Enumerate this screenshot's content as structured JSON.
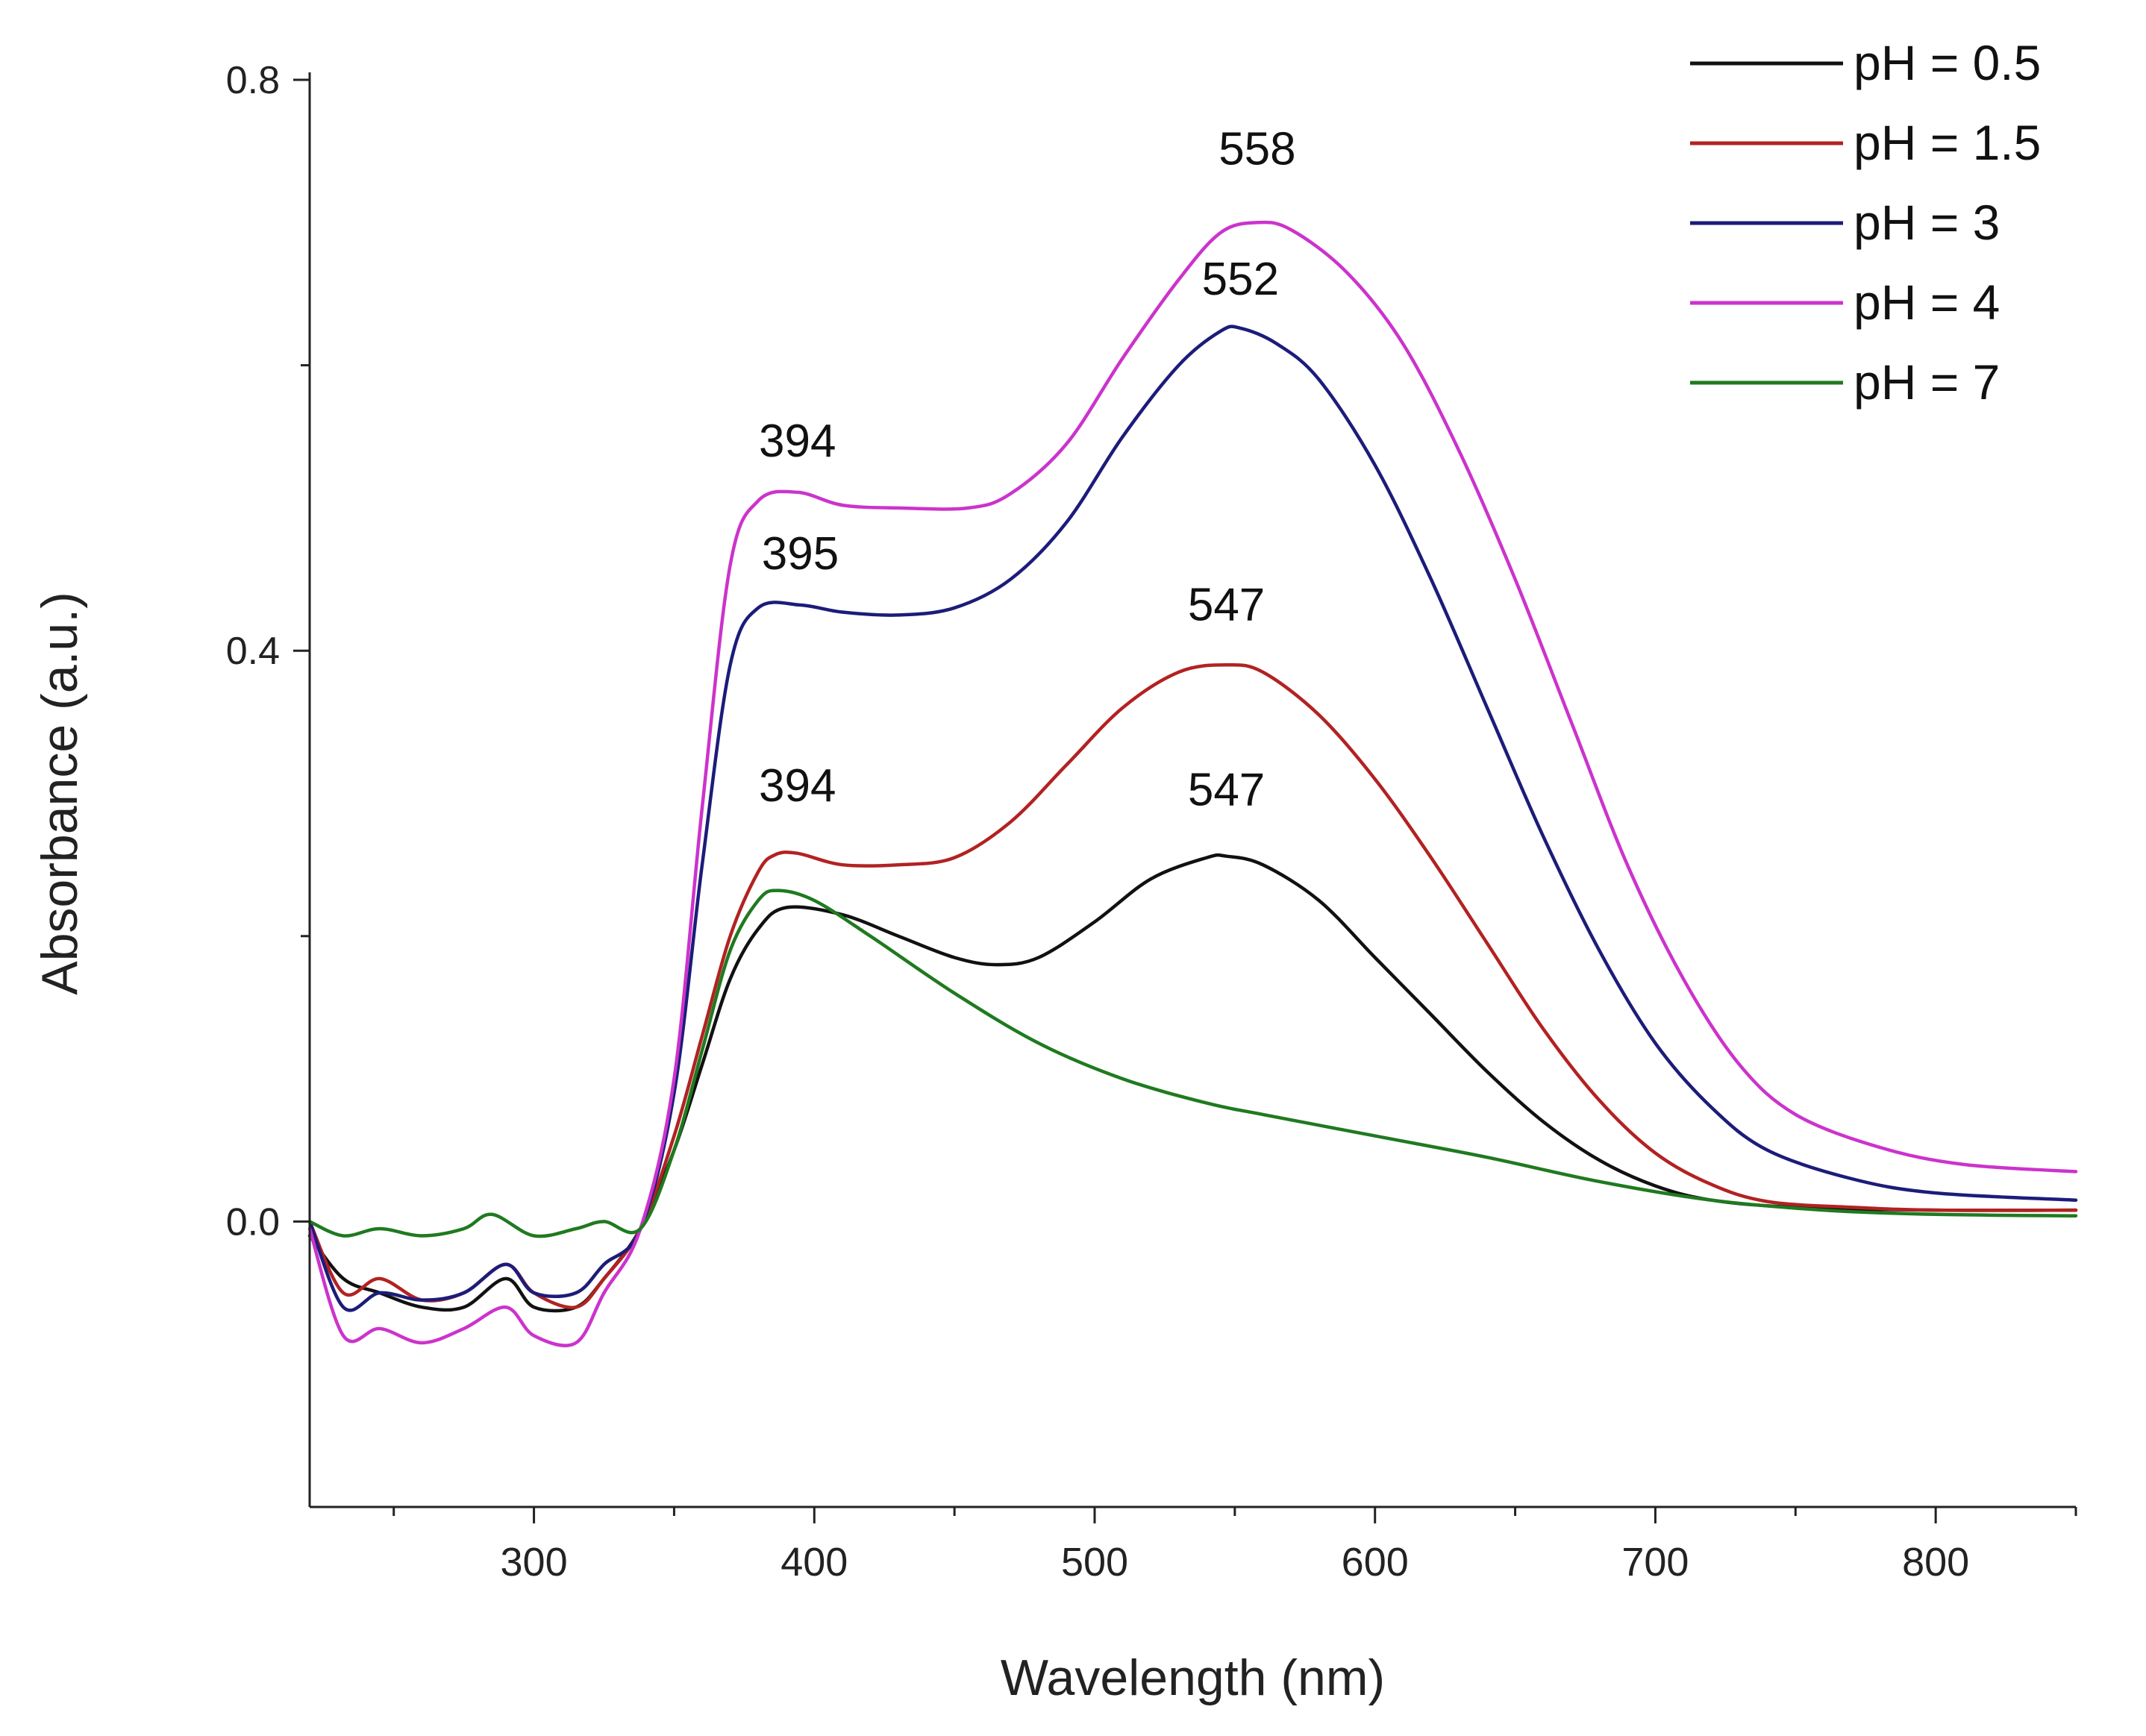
{
  "chart_data": {
    "type": "line",
    "title": "",
    "xlabel": "Wavelength (nm)",
    "ylabel": "Absorbance (a.u.)",
    "xlim": [
      220,
      850
    ],
    "ylim": [
      -0.2,
      0.8
    ],
    "x_ticks": [
      300,
      400,
      500,
      600,
      700,
      800
    ],
    "y_ticks": [
      0.0,
      0.4,
      0.8
    ],
    "y_tick_labels": [
      "0.0",
      "0.4",
      "0.8"
    ],
    "grid": false,
    "legend_position": "top-right",
    "series": [
      {
        "name": "pH = 0.5",
        "color": "#111111",
        "points": [
          [
            220,
            -0.01
          ],
          [
            232,
            -0.04
          ],
          [
            245,
            -0.05
          ],
          [
            260,
            -0.06
          ],
          [
            275,
            -0.06
          ],
          [
            290,
            -0.04
          ],
          [
            300,
            -0.06
          ],
          [
            315,
            -0.06
          ],
          [
            325,
            -0.04
          ],
          [
            338,
            -0.005
          ],
          [
            350,
            0.05
          ],
          [
            360,
            0.11
          ],
          [
            370,
            0.17
          ],
          [
            380,
            0.205
          ],
          [
            390,
            0.22
          ],
          [
            410,
            0.215
          ],
          [
            430,
            0.2
          ],
          [
            450,
            0.185
          ],
          [
            465,
            0.18
          ],
          [
            480,
            0.185
          ],
          [
            500,
            0.21
          ],
          [
            520,
            0.24
          ],
          [
            540,
            0.255
          ],
          [
            547,
            0.256
          ],
          [
            560,
            0.25
          ],
          [
            580,
            0.225
          ],
          [
            600,
            0.185
          ],
          [
            620,
            0.145
          ],
          [
            640,
            0.105
          ],
          [
            660,
            0.07
          ],
          [
            680,
            0.043
          ],
          [
            700,
            0.025
          ],
          [
            720,
            0.015
          ],
          [
            750,
            0.01
          ],
          [
            800,
            0.008
          ],
          [
            850,
            0.008
          ]
        ]
      },
      {
        "name": "pH = 1.5",
        "color": "#b22222",
        "points": [
          [
            220,
            0.0
          ],
          [
            232,
            -0.05
          ],
          [
            245,
            -0.04
          ],
          [
            260,
            -0.055
          ],
          [
            275,
            -0.05
          ],
          [
            290,
            -0.03
          ],
          [
            300,
            -0.05
          ],
          [
            315,
            -0.06
          ],
          [
            325,
            -0.04
          ],
          [
            338,
            -0.005
          ],
          [
            350,
            0.06
          ],
          [
            360,
            0.13
          ],
          [
            370,
            0.2
          ],
          [
            380,
            0.245
          ],
          [
            386,
            0.257
          ],
          [
            394,
            0.258
          ],
          [
            410,
            0.25
          ],
          [
            430,
            0.25
          ],
          [
            450,
            0.255
          ],
          [
            470,
            0.28
          ],
          [
            490,
            0.32
          ],
          [
            510,
            0.36
          ],
          [
            530,
            0.385
          ],
          [
            547,
            0.39
          ],
          [
            560,
            0.385
          ],
          [
            580,
            0.355
          ],
          [
            600,
            0.31
          ],
          [
            620,
            0.255
          ],
          [
            640,
            0.195
          ],
          [
            660,
            0.135
          ],
          [
            680,
            0.085
          ],
          [
            700,
            0.048
          ],
          [
            720,
            0.026
          ],
          [
            740,
            0.014
          ],
          [
            770,
            0.01
          ],
          [
            800,
            0.008
          ],
          [
            850,
            0.008
          ]
        ]
      },
      {
        "name": "pH = 3",
        "color": "#1c1c7a",
        "points": [
          [
            220,
            0.0
          ],
          [
            232,
            -0.06
          ],
          [
            245,
            -0.05
          ],
          [
            260,
            -0.055
          ],
          [
            275,
            -0.05
          ],
          [
            290,
            -0.03
          ],
          [
            300,
            -0.05
          ],
          [
            315,
            -0.05
          ],
          [
            325,
            -0.03
          ],
          [
            338,
            -0.005
          ],
          [
            350,
            0.09
          ],
          [
            360,
            0.25
          ],
          [
            370,
            0.39
          ],
          [
            380,
            0.43
          ],
          [
            395,
            0.432
          ],
          [
            410,
            0.427
          ],
          [
            430,
            0.425
          ],
          [
            450,
            0.43
          ],
          [
            470,
            0.45
          ],
          [
            490,
            0.49
          ],
          [
            510,
            0.55
          ],
          [
            530,
            0.6
          ],
          [
            545,
            0.624
          ],
          [
            552,
            0.626
          ],
          [
            565,
            0.615
          ],
          [
            580,
            0.59
          ],
          [
            600,
            0.53
          ],
          [
            620,
            0.45
          ],
          [
            640,
            0.36
          ],
          [
            660,
            0.27
          ],
          [
            680,
            0.19
          ],
          [
            700,
            0.125
          ],
          [
            720,
            0.08
          ],
          [
            740,
            0.05
          ],
          [
            770,
            0.03
          ],
          [
            800,
            0.02
          ],
          [
            850,
            0.015
          ]
        ]
      },
      {
        "name": "pH = 4",
        "color": "#cc33cc",
        "points": [
          [
            220,
            -0.005
          ],
          [
            232,
            -0.08
          ],
          [
            245,
            -0.075
          ],
          [
            260,
            -0.085
          ],
          [
            275,
            -0.075
          ],
          [
            290,
            -0.06
          ],
          [
            300,
            -0.08
          ],
          [
            315,
            -0.085
          ],
          [
            325,
            -0.05
          ],
          [
            338,
            -0.005
          ],
          [
            350,
            0.1
          ],
          [
            360,
            0.29
          ],
          [
            370,
            0.46
          ],
          [
            380,
            0.505
          ],
          [
            394,
            0.511
          ],
          [
            410,
            0.502
          ],
          [
            430,
            0.5
          ],
          [
            455,
            0.5
          ],
          [
            470,
            0.51
          ],
          [
            490,
            0.545
          ],
          [
            510,
            0.605
          ],
          [
            530,
            0.66
          ],
          [
            545,
            0.693
          ],
          [
            558,
            0.7
          ],
          [
            570,
            0.695
          ],
          [
            590,
            0.665
          ],
          [
            610,
            0.615
          ],
          [
            630,
            0.54
          ],
          [
            650,
            0.45
          ],
          [
            670,
            0.35
          ],
          [
            690,
            0.25
          ],
          [
            710,
            0.17
          ],
          [
            730,
            0.11
          ],
          [
            750,
            0.075
          ],
          [
            780,
            0.052
          ],
          [
            810,
            0.04
          ],
          [
            850,
            0.035
          ]
        ]
      },
      {
        "name": "pH = 7",
        "color": "#1f7a1f",
        "points": [
          [
            220,
            0.0
          ],
          [
            232,
            -0.01
          ],
          [
            245,
            -0.005
          ],
          [
            260,
            -0.01
          ],
          [
            275,
            -0.005
          ],
          [
            285,
            0.005
          ],
          [
            300,
            -0.01
          ],
          [
            315,
            -0.005
          ],
          [
            325,
            0.0
          ],
          [
            338,
            -0.005
          ],
          [
            350,
            0.05
          ],
          [
            360,
            0.12
          ],
          [
            370,
            0.19
          ],
          [
            380,
            0.225
          ],
          [
            387,
            0.232
          ],
          [
            400,
            0.225
          ],
          [
            420,
            0.2
          ],
          [
            450,
            0.16
          ],
          [
            480,
            0.125
          ],
          [
            510,
            0.1
          ],
          [
            540,
            0.083
          ],
          [
            560,
            0.075
          ],
          [
            600,
            0.06
          ],
          [
            640,
            0.045
          ],
          [
            680,
            0.028
          ],
          [
            720,
            0.015
          ],
          [
            760,
            0.008
          ],
          [
            800,
            0.005
          ],
          [
            850,
            0.004
          ]
        ]
      }
    ],
    "annotations": [
      {
        "text": "558",
        "x": 558,
        "y": 0.7,
        "position": "above"
      },
      {
        "text": "552",
        "x": 552,
        "y": 0.626,
        "position": "above"
      },
      {
        "text": "394",
        "x": 394,
        "y": 0.511,
        "position": "above"
      },
      {
        "text": "395",
        "x": 395,
        "y": 0.432,
        "position": "above"
      },
      {
        "text": "547",
        "x": 547,
        "y": 0.39,
        "position": "above"
      },
      {
        "text": "394",
        "x": 394,
        "y": 0.258,
        "position": "above"
      },
      {
        "text": "547",
        "x": 547,
        "y": 0.256,
        "position": "above"
      }
    ]
  }
}
